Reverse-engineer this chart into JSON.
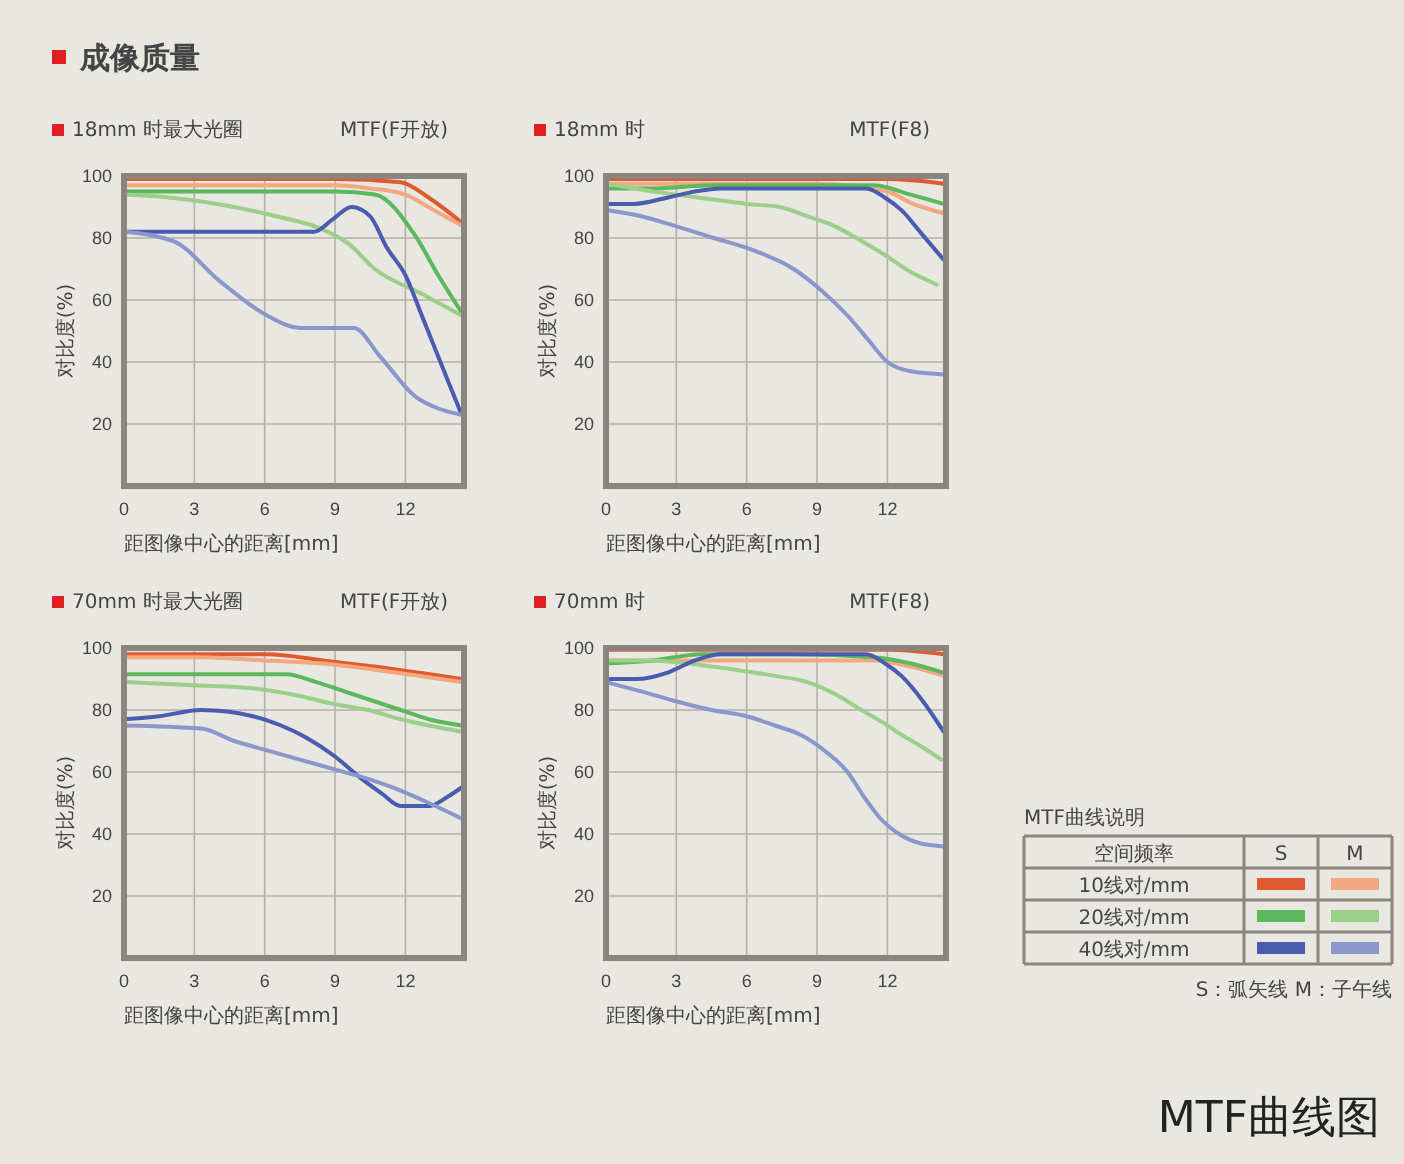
{
  "chart_data": [
    {
      "type": "line",
      "title": "18mm 时最大光圈",
      "subtitle": "MTF(F开放)",
      "xlabel": "距图像中心的距离[mm]",
      "ylabel": "对比度(%)",
      "xlim": [
        0,
        14.5
      ],
      "ylim": [
        0,
        100
      ],
      "xticks": [
        0,
        3,
        6,
        9,
        12
      ],
      "yticks": [
        20,
        40,
        60,
        80,
        100
      ],
      "grid": true,
      "line_style": "solid",
      "series": [
        {
          "color": "#e05a30",
          "x": [
            0,
            3,
            6,
            9,
            11.8,
            13,
            14.4
          ],
          "values": [
            99,
            99,
            99,
            99,
            98,
            93,
            85
          ]
        },
        {
          "color": "#f2a880",
          "x": [
            0,
            3,
            6,
            9,
            10.5,
            12,
            13.2,
            14.4
          ],
          "values": [
            97,
            97,
            97,
            97,
            96,
            94,
            89,
            84
          ]
        },
        {
          "color": "#5cb85c",
          "x": [
            0,
            3,
            6,
            9,
            10.7,
            12.4,
            13.4,
            14.4
          ],
          "values": [
            95,
            95,
            95,
            95,
            94,
            81,
            68,
            56
          ]
        },
        {
          "color": "#9ccf8a",
          "x": [
            0,
            2,
            4.7,
            6.5,
            8.4,
            9.6,
            10.7,
            12.7,
            14.4
          ],
          "values": [
            94,
            93,
            90,
            87,
            83,
            78,
            70,
            62,
            55
          ]
        },
        {
          "color": "#4a5cb0",
          "x": [
            0,
            3,
            6,
            8.1,
            8.9,
            9.7,
            10.5,
            11.2,
            12,
            12.7,
            13.6,
            14.4
          ],
          "values": [
            82,
            82,
            82,
            82,
            86,
            90,
            87,
            77,
            68,
            55,
            38,
            23
          ]
        },
        {
          "color": "#8a96cc",
          "x": [
            0,
            2.1,
            4.1,
            6.1,
            7.5,
            8.6,
            9.8,
            10.9,
            12.4,
            13.4,
            14.4
          ],
          "values": [
            82,
            79,
            66,
            55,
            51,
            51,
            51,
            42,
            29,
            25,
            23
          ]
        }
      ]
    },
    {
      "type": "line",
      "title": "18mm 时",
      "subtitle": "MTF(F8)",
      "xlabel": "距图像中心的距离[mm]",
      "ylabel": "对比度(%)",
      "xlim": [
        0,
        14.5
      ],
      "ylim": [
        0,
        100
      ],
      "xticks": [
        0,
        3,
        6,
        9,
        12
      ],
      "yticks": [
        20,
        40,
        60,
        80,
        100
      ],
      "grid": true,
      "line_style": "solid",
      "series": [
        {
          "color": "#e05a30",
          "x": [
            0,
            3,
            6,
            9,
            12,
            14.4
          ],
          "values": [
            99,
            99,
            99,
            99,
            99,
            97.5
          ]
        },
        {
          "color": "#f2a880",
          "x": [
            0,
            3,
            6,
            9,
            12,
            13.1,
            14.4
          ],
          "values": [
            97.5,
            97.5,
            97.5,
            97.5,
            95,
            91,
            88
          ]
        },
        {
          "color": "#5cb85c",
          "x": [
            0,
            2,
            4.6,
            8,
            11.4,
            13,
            14.4
          ],
          "values": [
            96,
            96,
            97,
            97,
            97,
            94,
            91
          ]
        },
        {
          "color": "#9ccf8a",
          "x": [
            0,
            2,
            4,
            6,
            7.4,
            8.6,
            9.7,
            10.9,
            12,
            13,
            14.1
          ],
          "values": [
            97.5,
            95,
            93,
            91,
            90,
            87,
            84,
            79,
            74,
            69,
            65
          ]
        },
        {
          "color": "#4a5cb0",
          "x": [
            0,
            1.2,
            2.6,
            3.8,
            4.9,
            8,
            11.1,
            11.9,
            12.6,
            13.5,
            14.4
          ],
          "values": [
            91,
            91,
            93,
            95,
            96,
            96,
            96,
            93,
            89,
            81,
            73
          ]
        },
        {
          "color": "#8a96cc",
          "x": [
            0,
            1.5,
            2.9,
            4.6,
            6.3,
            8,
            9.2,
            10.3,
            11.2,
            12,
            13,
            14.4
          ],
          "values": [
            89,
            87,
            84,
            80,
            76,
            70,
            63,
            55,
            47,
            40,
            37,
            36
          ]
        }
      ]
    },
    {
      "type": "line",
      "title": "70mm 时最大光圈",
      "subtitle": "MTF(F开放)",
      "xlabel": "距图像中心的距离[mm]",
      "ylabel": "对比度(%)",
      "xlim": [
        0,
        14.5
      ],
      "ylim": [
        0,
        100
      ],
      "xticks": [
        0,
        3,
        6,
        9,
        12
      ],
      "yticks": [
        20,
        40,
        60,
        80,
        100
      ],
      "grid": true,
      "line_style": "solid",
      "series": [
        {
          "color": "#e05a30",
          "x": [
            0,
            3,
            6.1,
            8.5,
            10.7,
            12.6,
            14.4
          ],
          "values": [
            98,
            98,
            98,
            96,
            94,
            92,
            90
          ]
        },
        {
          "color": "#f2a880",
          "x": [
            0,
            3,
            6,
            8.5,
            10.7,
            12.6,
            14.4
          ],
          "values": [
            97,
            97,
            96,
            95,
            93,
            91,
            89
          ]
        },
        {
          "color": "#5cb85c",
          "x": [
            0,
            3,
            6.9,
            8.2,
            9.4,
            11.8,
            13,
            14.4
          ],
          "values": [
            91.5,
            91.5,
            91.5,
            89,
            86,
            80,
            77,
            75
          ]
        },
        {
          "color": "#9ccf8a",
          "x": [
            0,
            3,
            5.5,
            7.2,
            8.9,
            10.4,
            11.8,
            13,
            14.4
          ],
          "values": [
            89,
            88,
            87,
            85,
            82,
            80,
            77,
            75,
            73
          ]
        },
        {
          "color": "#4a5cb0",
          "x": [
            0,
            1.5,
            3.3,
            5.5,
            6.7,
            7.8,
            9,
            10.1,
            11,
            11.8,
            13,
            13.8,
            14.4
          ],
          "values": [
            77,
            78,
            80,
            78,
            75,
            71,
            65,
            58,
            53,
            49,
            49,
            52,
            55
          ]
        },
        {
          "color": "#8a96cc",
          "x": [
            0,
            3.3,
            4.7,
            6.1,
            7.5,
            8.9,
            10.3,
            11.8,
            13,
            14.4
          ],
          "values": [
            75,
            74,
            70,
            67,
            64,
            61,
            58,
            54,
            50,
            45
          ]
        }
      ]
    },
    {
      "type": "line",
      "title": "70mm 时",
      "subtitle": "MTF(F8)",
      "xlabel": "距图像中心的距离[mm]",
      "ylabel": "对比度(%)",
      "xlim": [
        0,
        14.5
      ],
      "ylim": [
        0,
        100
      ],
      "xticks": [
        0,
        3,
        6,
        9,
        12
      ],
      "yticks": [
        20,
        40,
        60,
        80,
        100
      ],
      "grid": true,
      "line_style": "solid",
      "series": [
        {
          "color": "#e05a30",
          "x": [
            0,
            3,
            6,
            9,
            12,
            14.4
          ],
          "values": [
            99.4,
            99.4,
            99.4,
            99.4,
            99.4,
            98
          ]
        },
        {
          "color": "#f2a880",
          "x": [
            0,
            3,
            6,
            9,
            11.4,
            13,
            14.4
          ],
          "values": [
            96,
            96,
            96,
            96,
            96,
            94,
            91
          ]
        },
        {
          "color": "#5cb85c",
          "x": [
            0,
            2,
            4.1,
            8,
            11.4,
            13,
            14.4
          ],
          "values": [
            95,
            96,
            98,
            98,
            97,
            95,
            92
          ]
        },
        {
          "color": "#9ccf8a",
          "x": [
            0,
            2,
            3.5,
            5.5,
            7.2,
            8.6,
            9.8,
            10.9,
            11.8,
            12.6,
            13.5,
            14.3
          ],
          "values": [
            96,
            96,
            95,
            93,
            91,
            89,
            85,
            80,
            76,
            72,
            68,
            64
          ]
        },
        {
          "color": "#4a5cb0",
          "x": [
            0,
            1.3,
            2.6,
            3.8,
            4.9,
            8,
            11.1,
            11.9,
            12.6,
            13.5,
            14.4
          ],
          "values": [
            90,
            90,
            92,
            96,
            98,
            98,
            98,
            95,
            91,
            83,
            73
          ]
        },
        {
          "color": "#8a96cc",
          "x": [
            0,
            1.5,
            2.9,
            4.5,
            6,
            7.2,
            8.3,
            9.3,
            10.3,
            11,
            11.7,
            12.5,
            13.4,
            14.4
          ],
          "values": [
            89,
            86,
            83,
            80,
            78,
            75,
            72,
            67,
            60,
            52,
            45,
            40,
            37,
            36
          ]
        }
      ]
    },
    {
      "type": "other",
      "title": "MTF曲线说明",
      "annotations": [
        "成像质量",
        "空间频率",
        "S",
        "M",
        "10线对/mm",
        "20线对/mm",
        "40线对/mm",
        "S：弧矢线  M：子午线",
        "MTF曲线图"
      ]
    }
  ]
}
